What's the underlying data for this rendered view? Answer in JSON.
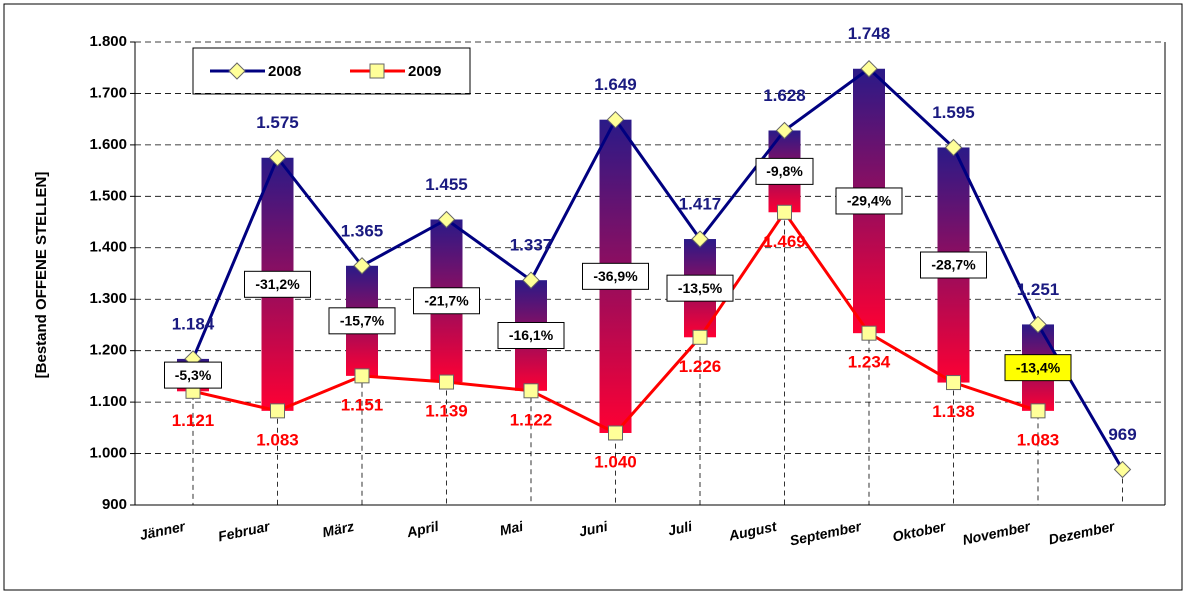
{
  "chart_data": {
    "type": "line",
    "y_axis_label": "[Bestand OFFENE STELLEN]",
    "categories": [
      "Jänner",
      "Februar",
      "März",
      "April",
      "Mai",
      "Juni",
      "Juli",
      "August",
      "September",
      "Oktober",
      "November",
      "Dezember"
    ],
    "series": [
      {
        "name": "2008",
        "color": "#000080",
        "marker_fill": "#ffff99",
        "values": [
          1184,
          1575,
          1365,
          1455,
          1337,
          1649,
          1417,
          1628,
          1748,
          1595,
          1251,
          969
        ],
        "value_labels": [
          "1.184",
          "1.575",
          "1.365",
          "1.455",
          "1.337",
          "1.649",
          "1.417",
          "1.628",
          "1.748",
          "1.595",
          "1.251",
          "969"
        ]
      },
      {
        "name": "2009",
        "color": "#ff0000",
        "marker_fill": "#ffff99",
        "values": [
          1121,
          1083,
          1151,
          1139,
          1122,
          1040,
          1226,
          1469,
          1234,
          1138,
          1083,
          null
        ],
        "value_labels": [
          "1.121",
          "1.083",
          "1.151",
          "1.139",
          "1.122",
          "1.040",
          "1.226",
          "1.469",
          "1.234",
          "1.138",
          "1.083",
          null
        ]
      }
    ],
    "change_labels": [
      "-5,3%",
      "-31,2%",
      "-15,7%",
      "-21,7%",
      "-16,1%",
      "-36,9%",
      "-13,5%",
      "-9,8%",
      "-29,4%",
      "-28,7%",
      "-13,4%",
      null
    ],
    "highlight": {
      "category": "November",
      "color": "#ffff00"
    },
    "ylim": [
      900,
      1800
    ],
    "yticks": [
      900,
      {
        "value": 1000,
        "label": "1.000"
      },
      {
        "value": 1100,
        "label": "1.100"
      },
      {
        "value": 1200,
        "label": "1.200"
      },
      {
        "value": 1300,
        "label": "1.300"
      },
      {
        "value": 1400,
        "label": "1.400"
      },
      {
        "value": 1500,
        "label": "1.500"
      },
      {
        "value": 1600,
        "label": "1.600"
      },
      {
        "value": 1700,
        "label": "1.700"
      },
      {
        "value": 1800,
        "label": "1.800"
      }
    ],
    "grid": true
  }
}
